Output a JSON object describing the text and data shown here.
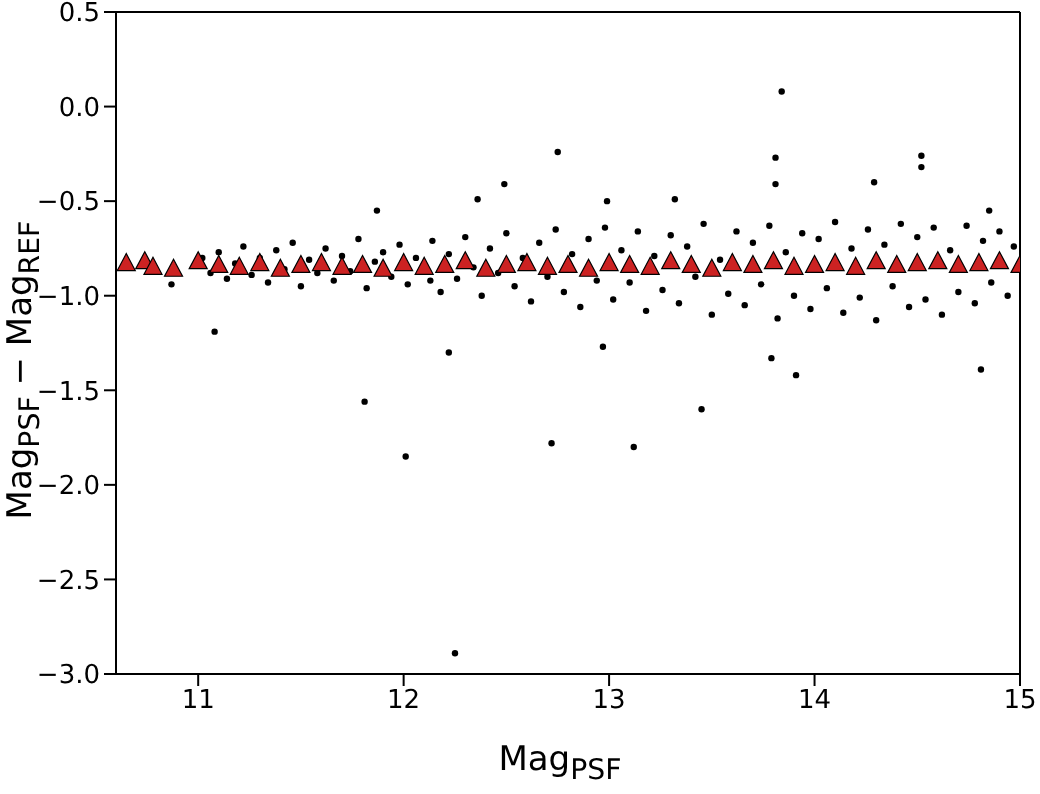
{
  "chart_data": {
    "type": "scatter",
    "xlabel": "Mag$_{PSF}$",
    "ylabel": "Mag$_{PSF}$ − Mag$_{REF}$",
    "xlim": [
      10.6,
      15
    ],
    "ylim": [
      -3,
      0.5
    ],
    "xticks": [
      11,
      12,
      13,
      14,
      15
    ],
    "yticks": [
      {
        "value": -3,
        "label": "−3.0"
      },
      {
        "value": -2.5,
        "label": "−2.5"
      },
      {
        "value": -2,
        "label": "−2.0"
      },
      {
        "value": -1.5,
        "label": "−1.5"
      },
      {
        "value": -1,
        "label": "−1.0"
      },
      {
        "value": -0.5,
        "label": "−0.5"
      },
      {
        "value": 0,
        "label": "0.0"
      },
      {
        "value": 0.5,
        "label": "0.5"
      }
    ],
    "series": [
      {
        "marker": "circle",
        "color": "#000000",
        "x": [
          10.87,
          11.02,
          11.06,
          11.1,
          11.14,
          11.18,
          11.22,
          11.26,
          11.3,
          11.34,
          11.38,
          11.42,
          11.46,
          11.5,
          11.54,
          11.58,
          11.62,
          11.66,
          11.7,
          11.74,
          11.78,
          11.82,
          11.86,
          11.9,
          11.94,
          11.98,
          12.02,
          12.06,
          12.13,
          12.14,
          12.18,
          12.22,
          12.26,
          12.3,
          12.34,
          12.38,
          12.42,
          12.46,
          12.5,
          12.54,
          12.58,
          12.62,
          12.66,
          12.7,
          12.74,
          12.78,
          12.82,
          12.86,
          12.9,
          12.94,
          12.98,
          13.02,
          13.06,
          13.1,
          13.14,
          13.18,
          13.22,
          13.26,
          13.3,
          13.34,
          13.38,
          13.42,
          13.46,
          13.5,
          13.54,
          13.58,
          13.62,
          13.66,
          13.7,
          13.74,
          13.78,
          13.82,
          13.86,
          13.9,
          13.94,
          13.98,
          14.02,
          14.06,
          14.1,
          14.14,
          14.18,
          14.22,
          14.26,
          14.3,
          14.34,
          14.38,
          14.42,
          14.46,
          14.5,
          14.54,
          14.58,
          14.62,
          14.66,
          14.7,
          14.74,
          14.78,
          14.82,
          14.86,
          14.9,
          14.94,
          14.97,
          13.84,
          12.75,
          13.81,
          13.81,
          14.52,
          14.52,
          11.87,
          12.49,
          12.36,
          12.99,
          13.32,
          14.29,
          14.85,
          11.08,
          12.22,
          11.81,
          12.01,
          12.72,
          12.97,
          13.12,
          13.45,
          13.79,
          13.91,
          14.81,
          12.25
        ],
        "values": [
          -0.94,
          -0.8,
          -0.88,
          -0.77,
          -0.91,
          -0.83,
          -0.74,
          -0.89,
          -0.8,
          -0.93,
          -0.76,
          -0.86,
          -0.72,
          -0.95,
          -0.81,
          -0.88,
          -0.75,
          -0.92,
          -0.79,
          -0.87,
          -0.7,
          -0.96,
          -0.82,
          -0.77,
          -0.9,
          -0.73,
          -0.94,
          -0.8,
          -0.92,
          -0.71,
          -0.98,
          -0.78,
          -0.91,
          -0.69,
          -0.85,
          -1.0,
          -0.75,
          -0.88,
          -0.67,
          -0.95,
          -0.8,
          -1.03,
          -0.72,
          -0.9,
          -0.65,
          -0.98,
          -0.78,
          -1.06,
          -0.7,
          -0.92,
          -0.64,
          -1.02,
          -0.76,
          -0.93,
          -0.66,
          -1.08,
          -0.79,
          -0.97,
          -0.68,
          -1.04,
          -0.74,
          -0.9,
          -0.62,
          -1.1,
          -0.81,
          -0.99,
          -0.66,
          -1.05,
          -0.72,
          -0.94,
          -0.63,
          -1.12,
          -0.77,
          -1.0,
          -0.67,
          -1.07,
          -0.7,
          -0.96,
          -0.61,
          -1.09,
          -0.75,
          -1.01,
          -0.65,
          -1.13,
          -0.73,
          -0.95,
          -0.62,
          -1.06,
          -0.69,
          -1.02,
          -0.64,
          -1.1,
          -0.76,
          -0.98,
          -0.63,
          -1.04,
          -0.71,
          -0.93,
          -0.66,
          -1.0,
          -0.74,
          0.08,
          -0.24,
          -0.27,
          -0.41,
          -0.26,
          -0.32,
          -0.55,
          -0.41,
          -0.49,
          -0.5,
          -0.49,
          -0.4,
          -0.55,
          -1.19,
          -1.3,
          -1.56,
          -1.85,
          -1.78,
          -1.27,
          -1.8,
          -1.6,
          -1.33,
          -1.42,
          -1.39,
          -2.89
        ]
      },
      {
        "marker": "triangle",
        "color": "#cc2222",
        "x": [
          10.65,
          10.74,
          10.78,
          10.88,
          11.0,
          11.1,
          11.2,
          11.3,
          11.4,
          11.5,
          11.6,
          11.7,
          11.8,
          11.9,
          12.0,
          12.1,
          12.2,
          12.3,
          12.4,
          12.5,
          12.6,
          12.7,
          12.8,
          12.9,
          13.0,
          13.1,
          13.2,
          13.3,
          13.4,
          13.5,
          13.6,
          13.7,
          13.8,
          13.9,
          14.0,
          14.1,
          14.2,
          14.3,
          14.4,
          14.5,
          14.6,
          14.7,
          14.8,
          14.9,
          15.0
        ],
        "values": [
          -0.83,
          -0.82,
          -0.85,
          -0.86,
          -0.82,
          -0.84,
          -0.85,
          -0.83,
          -0.86,
          -0.84,
          -0.83,
          -0.85,
          -0.84,
          -0.86,
          -0.83,
          -0.85,
          -0.84,
          -0.82,
          -0.86,
          -0.84,
          -0.83,
          -0.85,
          -0.84,
          -0.86,
          -0.83,
          -0.84,
          -0.85,
          -0.82,
          -0.84,
          -0.86,
          -0.83,
          -0.84,
          -0.82,
          -0.85,
          -0.84,
          -0.83,
          -0.85,
          -0.82,
          -0.84,
          -0.83,
          -0.82,
          -0.84,
          -0.83,
          -0.82,
          -0.84
        ]
      }
    ]
  }
}
